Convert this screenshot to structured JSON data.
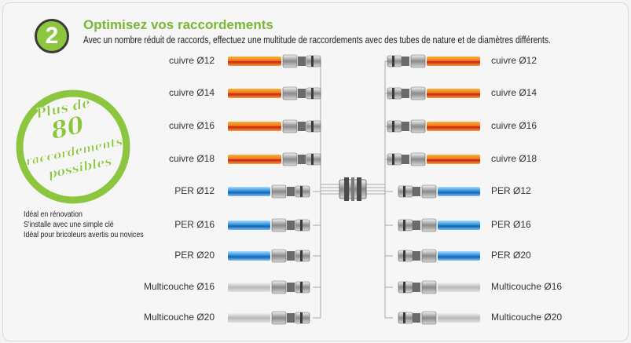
{
  "header": {
    "step_number": "2",
    "title": "Optimisez vos raccordements",
    "subtitle": "Avec un nombre réduit de raccords, effectuez une multitude de raccordements avec des tubes de nature et de diamètres différents."
  },
  "stamp": {
    "line1": "Plus de",
    "line2": "80",
    "line3": "raccordements",
    "line4": "possibles",
    "color": "#8cc63f"
  },
  "features": [
    "Idéal en rénovation",
    "S'installe avec une simple clé",
    "Idéal pour bricoleurs avertis ou novices"
  ],
  "tubes": {
    "left": [
      {
        "label": "cuivre Ø12",
        "material": "copper"
      },
      {
        "label": "cuivre Ø14",
        "material": "copper"
      },
      {
        "label": "cuivre Ø16",
        "material": "copper"
      },
      {
        "label": "cuivre Ø18",
        "material": "copper"
      },
      {
        "label": "PER Ø12",
        "material": "per"
      },
      {
        "label": "PER Ø16",
        "material": "per"
      },
      {
        "label": "PER Ø20",
        "material": "per"
      },
      {
        "label": "Multicouche Ø16",
        "material": "multi"
      },
      {
        "label": "Multicouche Ø20",
        "material": "multi"
      }
    ],
    "right": [
      {
        "label": "cuivre Ø12",
        "material": "copper"
      },
      {
        "label": "cuivre Ø14",
        "material": "copper"
      },
      {
        "label": "cuivre Ø16",
        "material": "copper"
      },
      {
        "label": "cuivre Ø18",
        "material": "copper"
      },
      {
        "label": "PER Ø12",
        "material": "per"
      },
      {
        "label": "PER Ø16",
        "material": "per"
      },
      {
        "label": "PER Ø20",
        "material": "per"
      },
      {
        "label": "Multicouche Ø16",
        "material": "multi"
      },
      {
        "label": "Multicouche Ø20",
        "material": "multi"
      }
    ]
  },
  "colors": {
    "accent_green": "#7ab535",
    "copper": "#e8701f",
    "per": "#2f8fd8",
    "multi": "#bdbdbd"
  }
}
